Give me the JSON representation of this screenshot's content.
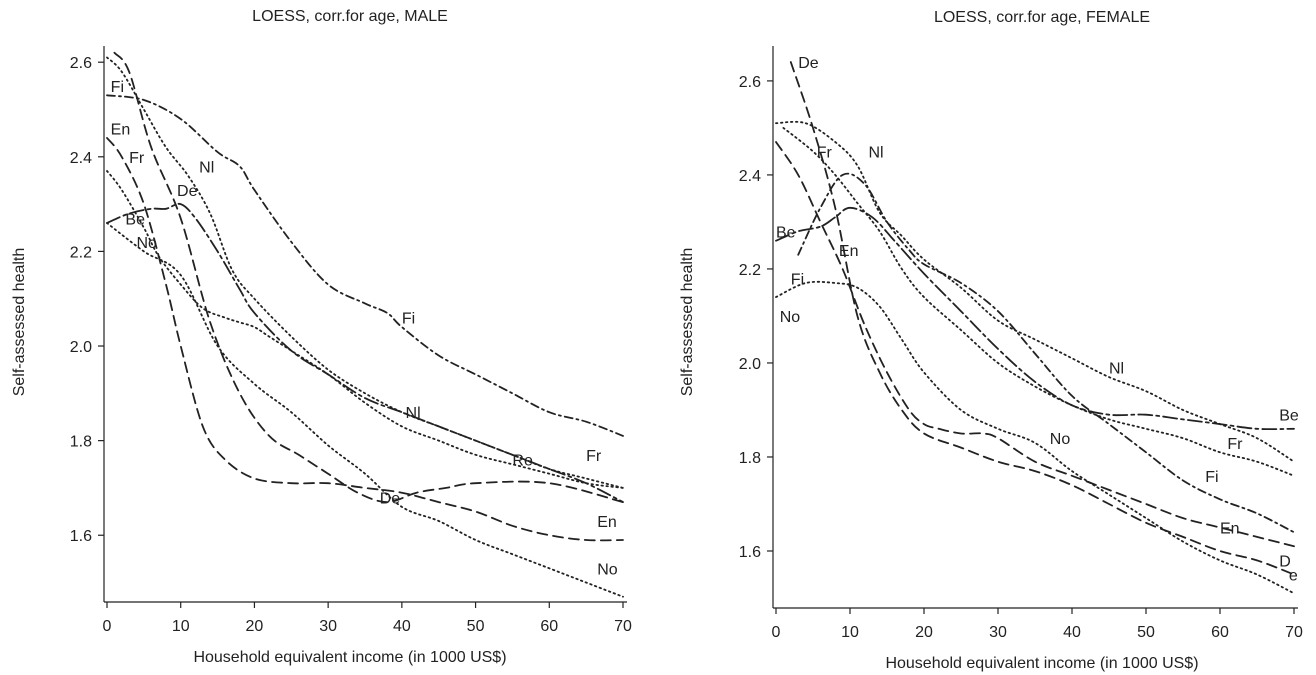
{
  "chart_data": [
    {
      "type": "line",
      "title": "LOESS, corr.for age, MALE",
      "xlabel": "Household equivalent income (in 1000 US$)",
      "ylabel": "Self-assessed health",
      "xlim": [
        0,
        70
      ],
      "ylim": [
        1.48,
        2.63
      ],
      "xticks": [
        0,
        10,
        20,
        30,
        40,
        50,
        60,
        70
      ],
      "yticks": [
        1.6,
        1.8,
        2.0,
        2.2,
        2.4,
        2.6
      ],
      "ytick_labels": [
        "1.6",
        "1.8",
        "2.0",
        "2.2",
        "2.4",
        "2.6"
      ],
      "grid": false,
      "series": [
        {
          "name": "Fi",
          "dash": "dashdot",
          "x": [
            0,
            5,
            10,
            15,
            18,
            20,
            25,
            30,
            35,
            38,
            40,
            45,
            50,
            55,
            60,
            65,
            70
          ],
          "y": [
            2.53,
            2.52,
            2.48,
            2.41,
            2.38,
            2.33,
            2.22,
            2.13,
            2.09,
            2.07,
            2.04,
            1.98,
            1.94,
            1.9,
            1.86,
            1.84,
            1.81
          ]
        },
        {
          "name": "De",
          "dash": "dashed",
          "x": [
            1,
            3,
            6,
            10,
            14,
            18,
            22,
            26,
            30,
            34,
            38,
            42,
            46,
            50,
            60,
            70
          ],
          "y": [
            2.62,
            2.58,
            2.42,
            2.27,
            2.05,
            1.9,
            1.81,
            1.77,
            1.73,
            1.69,
            1.67,
            1.69,
            1.7,
            1.71,
            1.71,
            1.67
          ]
        },
        {
          "name": "En",
          "dash": "dashed",
          "x": [
            0,
            2,
            5,
            8,
            10,
            13,
            16,
            20,
            25,
            30,
            35,
            40,
            45,
            50,
            55,
            60,
            65,
            70
          ],
          "y": [
            2.44,
            2.4,
            2.3,
            2.13,
            2.0,
            1.83,
            1.76,
            1.72,
            1.71,
            1.71,
            1.7,
            1.69,
            1.67,
            1.65,
            1.62,
            1.6,
            1.59,
            1.59
          ]
        },
        {
          "name": "Fr",
          "dash": "dotted",
          "x": [
            0,
            2,
            5,
            8,
            11,
            14,
            17,
            20,
            25,
            30,
            35,
            40,
            45,
            50,
            55,
            60,
            65,
            70
          ],
          "y": [
            2.61,
            2.58,
            2.5,
            2.42,
            2.36,
            2.28,
            2.16,
            2.1,
            2.02,
            1.95,
            1.9,
            1.86,
            1.83,
            1.8,
            1.77,
            1.74,
            1.72,
            1.7
          ]
        },
        {
          "name": "Be",
          "dash": "dotted",
          "x": [
            0,
            2,
            5,
            7,
            10,
            13,
            16,
            18,
            20,
            22,
            25,
            30,
            35,
            40,
            45,
            50,
            55,
            60,
            65,
            70
          ],
          "y": [
            2.37,
            2.33,
            2.25,
            2.19,
            2.13,
            2.08,
            2.06,
            2.05,
            2.04,
            2.02,
            1.99,
            1.94,
            1.88,
            1.83,
            1.8,
            1.77,
            1.75,
            1.73,
            1.71,
            1.7
          ]
        },
        {
          "name": "Nl",
          "dash": "longdashdot",
          "x": [
            0,
            3,
            6,
            8,
            10,
            12,
            15,
            18,
            20,
            25,
            30,
            35,
            40,
            45,
            50,
            55,
            60,
            65,
            70
          ],
          "y": [
            2.26,
            2.28,
            2.29,
            2.29,
            2.3,
            2.27,
            2.2,
            2.12,
            2.07,
            1.99,
            1.94,
            1.89,
            1.86,
            1.83,
            1.8,
            1.77,
            1.74,
            1.71,
            1.67
          ]
        },
        {
          "name": "No",
          "dash": "dotted",
          "x": [
            0,
            5,
            10,
            15,
            20,
            25,
            30,
            35,
            40,
            45,
            50,
            55,
            60,
            65,
            70
          ],
          "y": [
            2.26,
            2.2,
            2.15,
            2.0,
            1.92,
            1.86,
            1.79,
            1.73,
            1.66,
            1.63,
            1.59,
            1.56,
            1.53,
            1.5,
            1.47
          ]
        }
      ],
      "annotations": [
        {
          "text": "Fi",
          "x": 0.5,
          "y": 2.55
        },
        {
          "text": "En",
          "x": 0.5,
          "y": 2.46
        },
        {
          "text": "Fr",
          "x": 3.0,
          "y": 2.4
        },
        {
          "text": "Nl",
          "x": 12.5,
          "y": 2.38
        },
        {
          "text": "De",
          "x": 9.5,
          "y": 2.33
        },
        {
          "text": "Be",
          "x": 2.5,
          "y": 2.27
        },
        {
          "text": "No",
          "x": 4.0,
          "y": 2.22
        },
        {
          "text": "Fi",
          "x": 40.0,
          "y": 2.06
        },
        {
          "text": "Nl",
          "x": 40.5,
          "y": 1.86
        },
        {
          "text": "Re",
          "x": 55.0,
          "y": 1.76
        },
        {
          "text": "Fr",
          "x": 65.0,
          "y": 1.77
        },
        {
          "text": "De",
          "x": 37.0,
          "y": 1.68
        },
        {
          "text": "En",
          "x": 66.5,
          "y": 1.63
        },
        {
          "text": "No",
          "x": 66.5,
          "y": 1.53
        }
      ]
    },
    {
      "type": "line",
      "title": "LOESS, corr.for age, FEMALE",
      "xlabel": "Household equivalent income (in 1000 US$)",
      "ylabel": "Self-assessed health",
      "xlim": [
        0,
        70
      ],
      "ylim": [
        1.5,
        2.67
      ],
      "xticks": [
        0,
        10,
        20,
        30,
        40,
        50,
        60,
        70
      ],
      "yticks": [
        1.6,
        1.8,
        2.0,
        2.2,
        2.4,
        2.6
      ],
      "ytick_labels": [
        "1.6",
        "1.8",
        "2.0",
        "2.2",
        "2.4",
        "2.6"
      ],
      "grid": false,
      "series": [
        {
          "name": "De",
          "dash": "dashed",
          "x": [
            2,
            5,
            8,
            11,
            14,
            17,
            20,
            25,
            30,
            35,
            40,
            45,
            50,
            55,
            60,
            65,
            70
          ],
          "y": [
            2.64,
            2.5,
            2.33,
            2.1,
            1.98,
            1.9,
            1.85,
            1.82,
            1.79,
            1.77,
            1.74,
            1.7,
            1.66,
            1.63,
            1.6,
            1.58,
            1.55
          ]
        },
        {
          "name": "En",
          "dash": "dashed",
          "x": [
            0,
            3,
            6,
            9,
            12,
            15,
            18,
            20,
            22,
            25,
            28,
            30,
            35,
            40,
            45,
            50,
            55,
            60,
            65,
            70
          ],
          "y": [
            2.47,
            2.4,
            2.3,
            2.2,
            2.08,
            1.98,
            1.9,
            1.87,
            1.86,
            1.85,
            1.85,
            1.84,
            1.79,
            1.76,
            1.73,
            1.7,
            1.67,
            1.65,
            1.63,
            1.61
          ]
        },
        {
          "name": "Fr",
          "dash": "dotted",
          "x": [
            1,
            5,
            8,
            11,
            14,
            17,
            20,
            25,
            30,
            35,
            40,
            45,
            50,
            55,
            60,
            65,
            70
          ],
          "y": [
            2.5,
            2.45,
            2.4,
            2.34,
            2.28,
            2.2,
            2.14,
            2.07,
            2.0,
            1.95,
            1.91,
            1.88,
            1.86,
            1.84,
            1.81,
            1.79,
            1.76
          ]
        },
        {
          "name": "Nl",
          "dash": "dotted",
          "x": [
            0,
            4,
            8,
            11,
            14,
            17,
            20,
            25,
            30,
            35,
            40,
            45,
            50,
            55,
            60,
            65,
            70
          ],
          "y": [
            2.51,
            2.51,
            2.47,
            2.42,
            2.32,
            2.27,
            2.22,
            2.16,
            2.09,
            2.05,
            2.01,
            1.97,
            1.94,
            1.9,
            1.87,
            1.84,
            1.79
          ]
        },
        {
          "name": "Fi",
          "dash": "dashdot",
          "x": [
            3,
            6,
            9,
            12,
            15,
            18,
            20,
            25,
            30,
            35,
            40,
            45,
            50,
            55,
            60,
            65,
            70
          ],
          "y": [
            2.23,
            2.33,
            2.4,
            2.38,
            2.3,
            2.24,
            2.21,
            2.17,
            2.11,
            2.02,
            1.93,
            1.87,
            1.81,
            1.75,
            1.71,
            1.68,
            1.64
          ]
        },
        {
          "name": "Be",
          "dash": "longdashdot",
          "x": [
            0,
            3,
            6,
            8,
            10,
            13,
            16,
            20,
            25,
            30,
            35,
            40,
            45,
            50,
            55,
            60,
            65,
            70
          ],
          "y": [
            2.26,
            2.28,
            2.29,
            2.31,
            2.33,
            2.31,
            2.26,
            2.19,
            2.11,
            2.03,
            1.96,
            1.91,
            1.89,
            1.89,
            1.88,
            1.87,
            1.86,
            1.86
          ]
        },
        {
          "name": "No",
          "dash": "dotted",
          "x": [
            0,
            4,
            8,
            11,
            14,
            17,
            20,
            25,
            30,
            35,
            40,
            45,
            50,
            55,
            60,
            65,
            70
          ],
          "y": [
            2.14,
            2.17,
            2.17,
            2.16,
            2.12,
            2.05,
            1.98,
            1.9,
            1.86,
            1.83,
            1.77,
            1.72,
            1.67,
            1.62,
            1.58,
            1.55,
            1.51
          ]
        }
      ],
      "annotations": [
        {
          "text": "De",
          "x": 3.0,
          "y": 2.64
        },
        {
          "text": "Fr",
          "x": 5.5,
          "y": 2.45
        },
        {
          "text": "Nl",
          "x": 12.5,
          "y": 2.45
        },
        {
          "text": "Be",
          "x": 0.0,
          "y": 2.28
        },
        {
          "text": "En",
          "x": 8.5,
          "y": 2.24
        },
        {
          "text": "Fi",
          "x": 2.0,
          "y": 2.18
        },
        {
          "text": "No",
          "x": 0.5,
          "y": 2.1
        },
        {
          "text": "Nl",
          "x": 45.0,
          "y": 1.99
        },
        {
          "text": "Be",
          "x": 68.0,
          "y": 1.89
        },
        {
          "text": "Fr",
          "x": 61.0,
          "y": 1.83
        },
        {
          "text": "No",
          "x": 37.0,
          "y": 1.84
        },
        {
          "text": "Fi",
          "x": 58.0,
          "y": 1.76
        },
        {
          "text": "En",
          "x": 60.0,
          "y": 1.65
        },
        {
          "text": "D",
          "x": 68.0,
          "y": 1.58
        },
        {
          "text": "e",
          "x": 69.3,
          "y": 1.55
        }
      ]
    }
  ]
}
